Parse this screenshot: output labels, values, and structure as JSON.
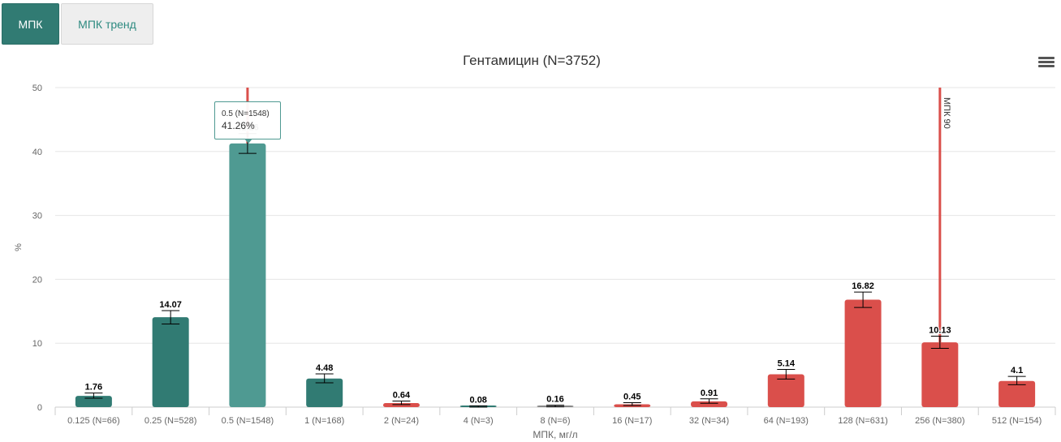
{
  "tabs": [
    {
      "label": "МПК",
      "active": true
    },
    {
      "label": "МПК тренд",
      "active": false
    }
  ],
  "icons": {
    "menu": "hamburger-menu-icon"
  },
  "tooltip": {
    "header": "0.5 (N=1548)",
    "value": "41.26%"
  },
  "chart_data": {
    "type": "bar",
    "title": "Гентамицин (N=3752)",
    "xlabel": "МПК, мг/л",
    "ylabel": "%",
    "ylim": [
      0,
      50
    ],
    "yticks": [
      0,
      10,
      20,
      30,
      40,
      50
    ],
    "grid": true,
    "categories": [
      "0.125 (N=66)",
      "0.25 (N=528)",
      "0.5 (N=1548)",
      "1 (N=168)",
      "2 (N=24)",
      "4 (N=3)",
      "8 (N=6)",
      "16 (N=17)",
      "32 (N=34)",
      "64 (N=193)",
      "128 (N=631)",
      "256 (N=380)",
      "512 (N=154)"
    ],
    "values": [
      1.76,
      14.07,
      41.26,
      4.48,
      0.64,
      0.08,
      0.16,
      0.45,
      0.91,
      5.14,
      16.82,
      10.13,
      4.1
    ],
    "value_labels": [
      "1.76",
      "14.07",
      "41.26",
      "4.48",
      "0.64",
      "0.08",
      "0.16",
      "0.45",
      "0.91",
      "5.14",
      "16.82",
      "10.13",
      "4.1"
    ],
    "error_low": [
      1.4,
      13.0,
      39.7,
      3.8,
      0.4,
      0.0,
      0.05,
      0.25,
      0.6,
      4.4,
      15.6,
      9.2,
      3.5
    ],
    "error_high": [
      2.2,
      15.1,
      42.8,
      5.2,
      0.95,
      0.2,
      0.3,
      0.7,
      1.3,
      5.9,
      18.0,
      11.1,
      4.8
    ],
    "bar_colors": [
      "#317b73",
      "#317b73",
      "#4f9a92",
      "#317b73",
      "#da4f4b",
      "#317b73",
      "#888888",
      "#da4f4b",
      "#da4f4b",
      "#da4f4b",
      "#da4f4b",
      "#da4f4b",
      "#da4f4b"
    ],
    "markers": [
      {
        "category_index": 2,
        "label": "",
        "color": "#da4f4b"
      },
      {
        "category_index": 11,
        "label": "МПК 90",
        "color": "#da4f4b"
      }
    ]
  }
}
